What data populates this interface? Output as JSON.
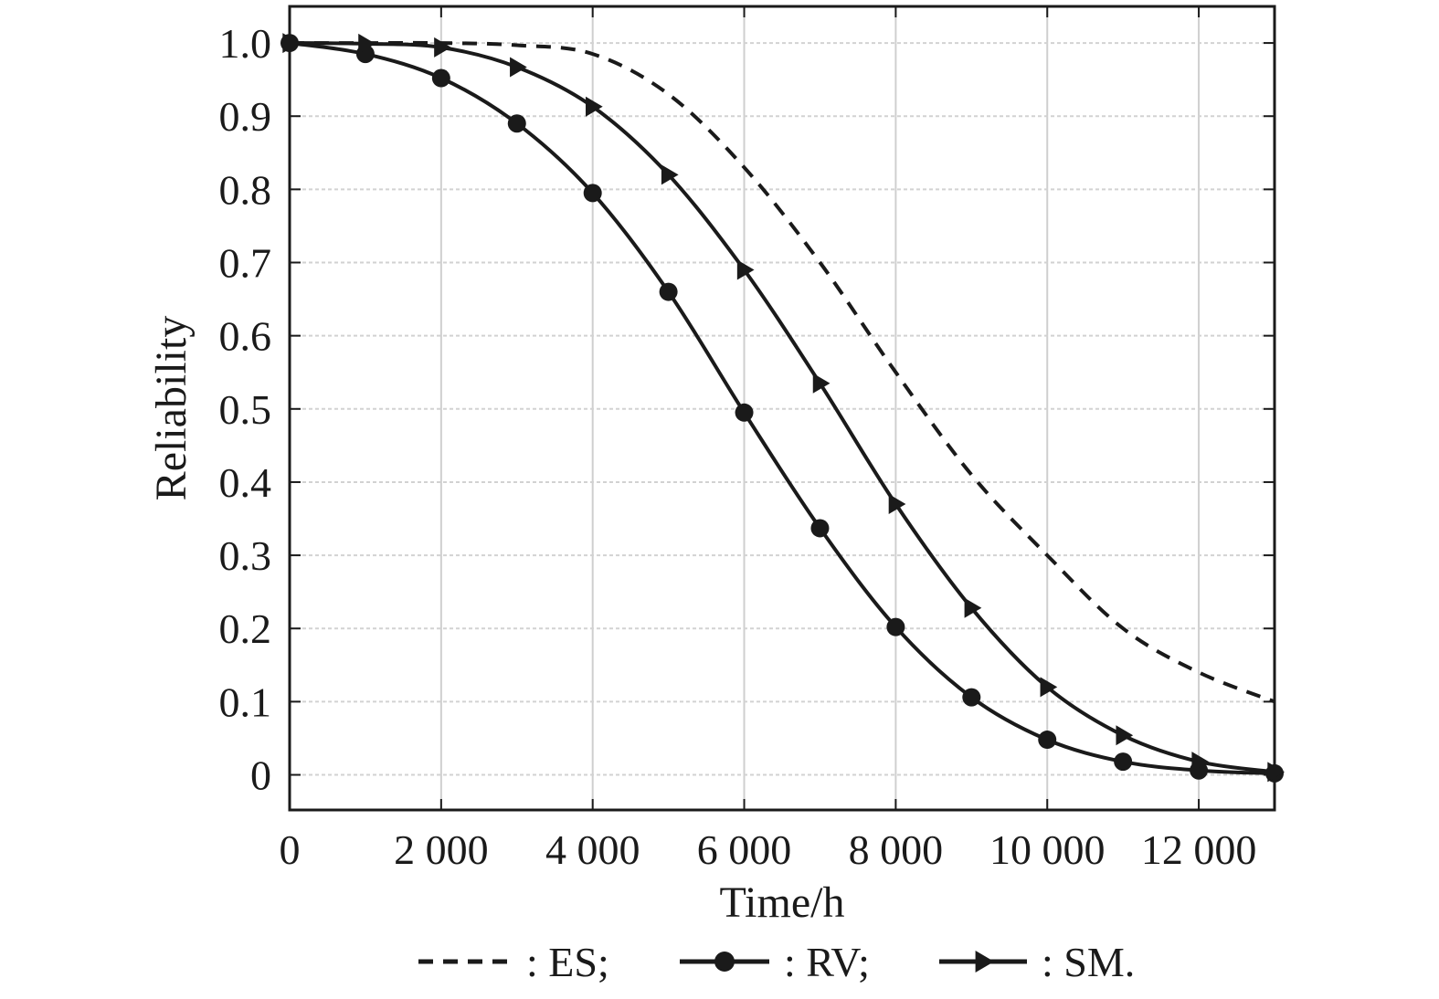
{
  "chart_data": {
    "type": "line",
    "title": "",
    "xlabel": "Time/h",
    "ylabel": "Reliability",
    "xlim": [
      0,
      13000
    ],
    "ylim": [
      -0.048,
      1.05
    ],
    "x_ticks": [
      0,
      2000,
      4000,
      6000,
      8000,
      10000,
      12000
    ],
    "x_tick_labels": [
      "0",
      "2 000",
      "4 000",
      "6 000",
      "8 000",
      "10 000",
      "12 000"
    ],
    "y_ticks": [
      0,
      0.1,
      0.2,
      0.3,
      0.4,
      0.5,
      0.6,
      0.7,
      0.8,
      0.9,
      1.0
    ],
    "y_tick_labels": [
      "0",
      "0.1",
      "0.2",
      "0.3",
      "0.4",
      "0.5",
      "0.6",
      "0.7",
      "0.8",
      "0.9",
      "1.0"
    ],
    "grid": true,
    "legend_position": "bottom",
    "x": [
      0,
      1000,
      2000,
      3000,
      4000,
      5000,
      6000,
      7000,
      8000,
      9000,
      10000,
      11000,
      12000,
      13000
    ],
    "series": [
      {
        "name": "ES",
        "legend_label": ": ES;",
        "style": "dashed",
        "marker": "none",
        "values": [
          1.0,
          1.0,
          1.0,
          0.997,
          0.985,
          0.93,
          0.83,
          0.7,
          0.55,
          0.41,
          0.3,
          0.2,
          0.14,
          0.1
        ]
      },
      {
        "name": "RV",
        "legend_label": ": RV;",
        "style": "solid",
        "marker": "circle",
        "values": [
          1.0,
          0.985,
          0.952,
          0.89,
          0.795,
          0.66,
          0.495,
          0.337,
          0.202,
          0.106,
          0.048,
          0.018,
          0.006,
          0.002
        ]
      },
      {
        "name": "SM",
        "legend_label": ": SM.",
        "style": "solid",
        "marker": "triangle-right",
        "values": [
          1.0,
          0.999,
          0.994,
          0.967,
          0.913,
          0.82,
          0.69,
          0.535,
          0.37,
          0.228,
          0.12,
          0.054,
          0.018,
          0.004
        ]
      }
    ],
    "colors": {
      "line": "#1a1a1a",
      "grid": "#cfcfcf",
      "background": "#ffffff"
    }
  }
}
